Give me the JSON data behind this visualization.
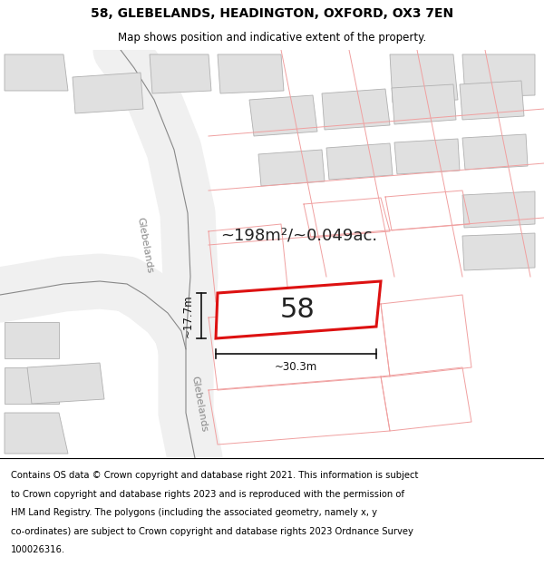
{
  "title": "58, GLEBELANDS, HEADINGTON, OXFORD, OX3 7EN",
  "subtitle": "Map shows position and indicative extent of the property.",
  "area_text": "~198m²/~0.049ac.",
  "number_label": "58",
  "dim_width": "~30.3m",
  "dim_height": "~17.7m",
  "map_bg": "#ffffff",
  "building_fill": "#e0e0e0",
  "building_edge": "#b0b0b0",
  "parcel_line": "#f0a0a0",
  "road_fill": "#f0f0f0",
  "road_line": "#888888",
  "highlight_color": "#dd1111",
  "dim_color": "#111111",
  "road_label_color": "#888888",
  "footer_text_line1": "Contains OS data © Crown copyright and database right 2021. This information is subject",
  "footer_text_line2": "to Crown copyright and database rights 2023 and is reproduced with the permission of",
  "footer_text_line3": "HM Land Registry. The polygons (including the associated geometry, namely x, y",
  "footer_text_line4": "co-ordinates) are subject to Crown copyright and database rights 2023 Ordnance Survey",
  "footer_text_line5": "100026316.",
  "title_fontsize": 10,
  "subtitle_fontsize": 8.5,
  "footer_fontsize": 7.2,
  "area_fontsize": 13,
  "number_fontsize": 22,
  "dim_fontsize": 8.5,
  "road_fontsize": 8
}
